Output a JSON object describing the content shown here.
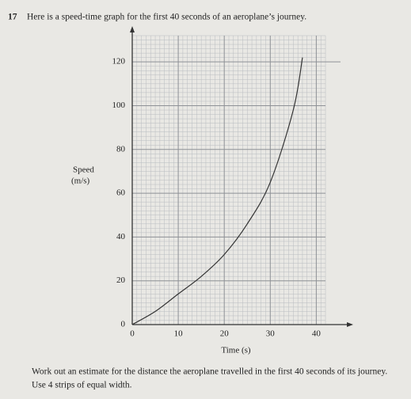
{
  "question": {
    "number": "17",
    "text": "Here is a speed-time graph for the first 40 seconds of an aeroplane’s journey.",
    "task_line1": "Work out an estimate for the distance the aeroplane travelled in the first 40 seconds of its journey.",
    "task_line2": "Use 4 strips of equal width."
  },
  "chart_data": {
    "type": "line",
    "x_label": "Time (s)",
    "y_label_line1": "Speed",
    "y_label_line2": "(m/s)",
    "series": [
      {
        "color": "#333333",
        "x": [
          0,
          5,
          10,
          15,
          20,
          25,
          30,
          35,
          37
        ],
        "values": [
          0,
          6,
          14,
          22,
          32,
          46,
          65,
          98,
          122
        ]
      }
    ],
    "xlim": [
      0,
      42
    ],
    "ylim": [
      0,
      132
    ],
    "xticks": [
      0,
      10,
      20,
      30,
      40
    ],
    "yticks": [
      0,
      20,
      40,
      60,
      80,
      100,
      120
    ],
    "grid": true
  }
}
